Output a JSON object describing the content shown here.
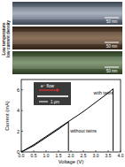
{
  "figure": {
    "side_label": [
      "Low temperature",
      "low current density"
    ],
    "scale_bars": [
      "50 nm",
      "50 nm",
      "50 nm"
    ]
  },
  "chart_data": {
    "type": "line",
    "x_label": "Voltage (V)",
    "y_label": "Current (mA)",
    "annotations": [
      "e⁻ flow",
      "1 μm"
    ],
    "series": [
      {
        "name": "with twins",
        "color": "#000000",
        "x": [
          0,
          0.5,
          1,
          1.5,
          2,
          2.5,
          3,
          3.5,
          3.7,
          3.7
        ],
        "values": [
          0,
          0.7,
          1.5,
          2.3,
          3.1,
          3.9,
          4.8,
          5.7,
          6.1,
          0.1
        ]
      },
      {
        "name": "without twins",
        "color": "#000000",
        "x": [
          0,
          0.5,
          1,
          1.5,
          1.9,
          1.9
        ],
        "values": [
          0,
          0.6,
          1.4,
          2.2,
          2.9,
          0.1
        ]
      }
    ],
    "xlim": [
      0,
      4
    ],
    "xticks": [
      {
        "value": 0,
        "label": "0.0"
      },
      {
        "value": 0.5,
        "label": "0.5"
      },
      {
        "value": 1,
        "label": "1.0"
      },
      {
        "value": 1.5,
        "label": "1.5"
      },
      {
        "value": 2,
        "label": "2.0"
      },
      {
        "value": 2.5,
        "label": "2.5"
      },
      {
        "value": 3,
        "label": "3.0"
      },
      {
        "value": 3.5,
        "label": "3.5"
      },
      {
        "value": 4,
        "label": "4.0"
      }
    ],
    "ylim": [
      0,
      7
    ],
    "yticks": [
      0,
      2,
      4,
      6
    ],
    "grid": false
  }
}
